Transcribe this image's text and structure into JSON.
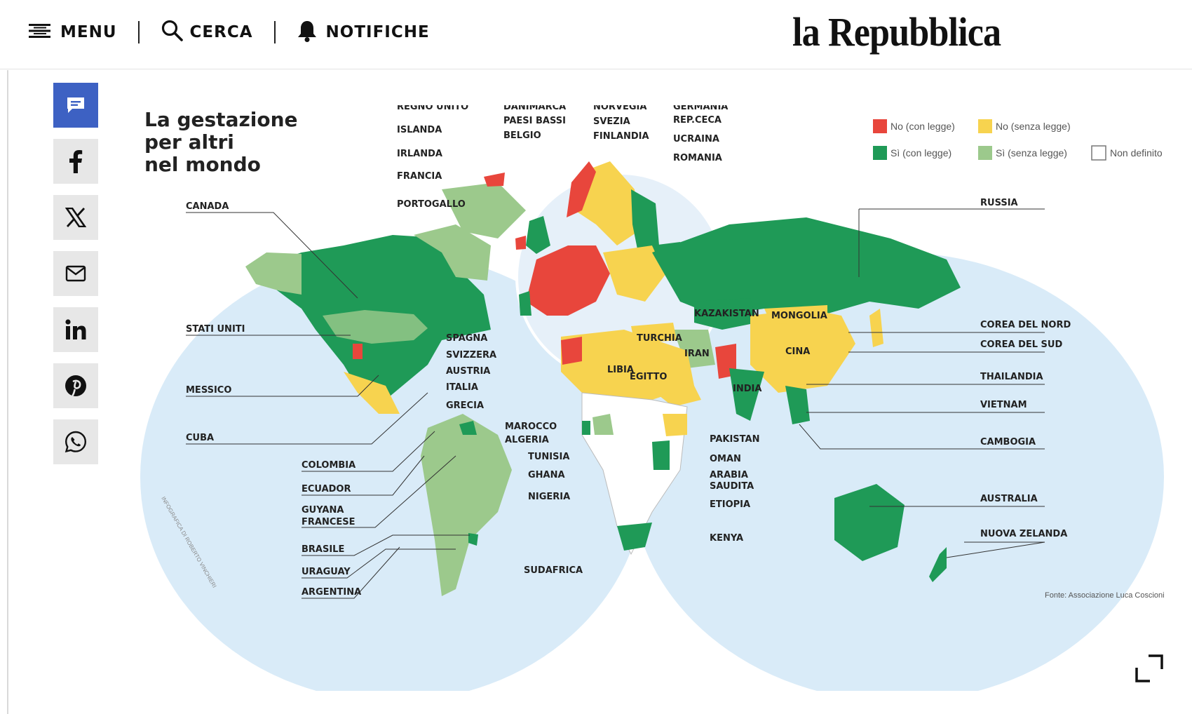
{
  "header": {
    "menu_label": "MENU",
    "search_label": "CERCA",
    "notifications_label": "NOTIFICHE",
    "logo_text": "la Repubblica"
  },
  "share": [
    "comments",
    "facebook",
    "x",
    "email",
    "linkedin",
    "pinterest",
    "whatsapp"
  ],
  "infographic": {
    "title_line1": "La gestazione",
    "title_line2": "per altri",
    "title_line3": "nel mondo",
    "legend": {
      "no_con_legge": "No (con legge)",
      "no_senza_legge": "No (senza legge)",
      "si_con_legge": "Sì (con legge)",
      "si_senza_legge": "Sì  (senza legge)",
      "non_definito": "Non definito"
    },
    "credit": "INFOGRAFICA DI ROBERTO VINCHIERI",
    "source": "Fonte: Associazione Luca Coscioni",
    "labels": {
      "canada": "CANADA",
      "stati_uniti": "STATI UNITI",
      "messico": "MESSICO",
      "cuba": "CUBA",
      "colombia": "COLOMBIA",
      "ecuador": "ECUADOR",
      "guyana1": "GUYANA",
      "guyana2": "FRANCESE",
      "brasile": "BRASILE",
      "uruguay": "URAGUAY",
      "argentina": "ARGENTINA",
      "regno_unito": "REGNO UNITO",
      "islanda": "ISLANDA",
      "irlanda": "IRLANDA",
      "francia": "FRANCIA",
      "portogallo": "PORTOGALLO",
      "danimarca": "DANIMARCA",
      "paesi_bassi": "PAESI BASSI",
      "belgio": "BELGIO",
      "norvegia": "NORVEGIA",
      "svezia": "SVEZIA",
      "finlandia": "FINLANDIA",
      "germania": "GERMANIA",
      "rep_ceca": "REP.CECA",
      "ucraina": "UCRAINA",
      "romania": "ROMANIA",
      "spagna": "SPAGNA",
      "svizzera": "SVIZZERA",
      "austria": "AUSTRIA",
      "italia": "ITALIA",
      "grecia": "GRECIA",
      "marocco": "MAROCCO",
      "algeria": "ALGERIA",
      "tunisia": "TUNISIA",
      "ghana": "GHANA",
      "nigeria": "NIGERIA",
      "sudafrica": "SUDAFRICA",
      "libia": "LIBIA",
      "egitto": "EGITTO",
      "turchia": "TURCHIA",
      "iran": "IRAN",
      "kazakistan": "KAZAKISTAN",
      "mongolia": "MONGOLIA",
      "cina": "CINA",
      "india": "INDIA",
      "pakistan": "PAKISTAN",
      "oman": "OMAN",
      "arabia1": "ARABIA",
      "arabia2": "SAUDITA",
      "etiopia": "ETIOPIA",
      "kenya": "KENYA",
      "russia": "RUSSIA",
      "corea_nord": "COREA DEL NORD",
      "corea_sud": "COREA DEL SUD",
      "thailandia": "THAILANDIA",
      "vietnam": "VIETNAM",
      "cambogia": "CAMBOGIA",
      "australia": "AUSTRALIA",
      "nuova_zelanda": "NUOVA ZELANDA"
    }
  },
  "colors": {
    "red": "#e8463c",
    "yellow": "#f7d34f",
    "green": "#1f9a57",
    "light_green": "#9cc98c",
    "ocean": "#d9ebf8",
    "accent": "#3d61c3"
  }
}
